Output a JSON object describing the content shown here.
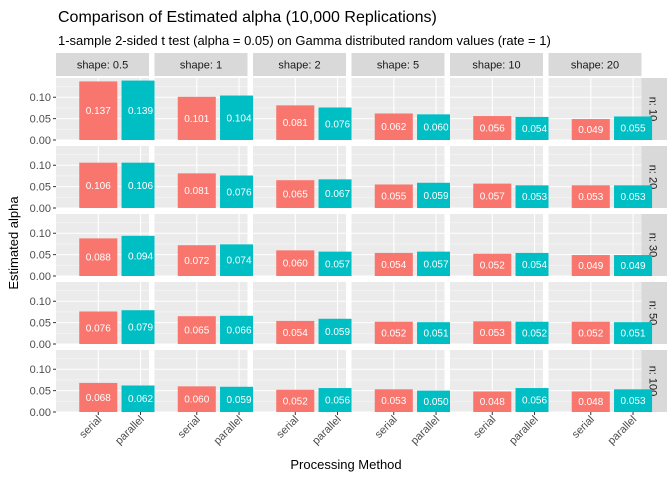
{
  "chart_data": {
    "type": "bar",
    "title": "Comparison of Estimated alpha (10,000 Replications)",
    "subtitle": "1-sample 2-sided t test (alpha = 0.05) on Gamma distributed random values (rate = 1)",
    "xlabel": "Processing Method",
    "ylabel": "Estimated alpha",
    "categories": [
      "serial",
      "parallel"
    ],
    "ylim": [
      0,
      0.145
    ],
    "yticks": [
      "0.00",
      "0.05",
      "0.10"
    ],
    "ytick_values": [
      0,
      0.05,
      0.1
    ],
    "grid": true,
    "facet_cols": [
      "shape: 0.5",
      "shape: 1",
      "shape: 2",
      "shape: 5",
      "shape: 10",
      "shape: 20"
    ],
    "facet_rows": [
      "n: 10",
      "n: 20",
      "n: 30",
      "n: 50",
      "n: 100"
    ],
    "colors": {
      "serial": "#F8766D",
      "parallel": "#00BFC4"
    },
    "values": [
      [
        [
          0.137,
          0.139
        ],
        [
          0.101,
          0.104
        ],
        [
          0.081,
          0.076
        ],
        [
          0.062,
          0.06
        ],
        [
          0.056,
          0.054
        ],
        [
          0.049,
          0.055
        ]
      ],
      [
        [
          0.106,
          0.106
        ],
        [
          0.081,
          0.076
        ],
        [
          0.065,
          0.067
        ],
        [
          0.055,
          0.059
        ],
        [
          0.057,
          0.053
        ],
        [
          0.053,
          0.053
        ]
      ],
      [
        [
          0.088,
          0.094
        ],
        [
          0.072,
          0.074
        ],
        [
          0.06,
          0.057
        ],
        [
          0.054,
          0.057
        ],
        [
          0.052,
          0.054
        ],
        [
          0.049,
          0.049
        ]
      ],
      [
        [
          0.076,
          0.079
        ],
        [
          0.065,
          0.066
        ],
        [
          0.054,
          0.059
        ],
        [
          0.052,
          0.051
        ],
        [
          0.053,
          0.052
        ],
        [
          0.052,
          0.051
        ]
      ],
      [
        [
          0.068,
          0.062
        ],
        [
          0.06,
          0.059
        ],
        [
          0.052,
          0.056
        ],
        [
          0.053,
          0.05
        ],
        [
          0.048,
          0.056
        ],
        [
          0.048,
          0.053
        ]
      ]
    ],
    "labels": [
      [
        [
          "0.137",
          "0.139"
        ],
        [
          "0.101",
          "0.104"
        ],
        [
          "0.081",
          "0.076"
        ],
        [
          "0.062",
          "0.060"
        ],
        [
          "0.056",
          "0.054"
        ],
        [
          "0.049",
          "0.055"
        ]
      ],
      [
        [
          "0.106",
          "0.106"
        ],
        [
          "0.081",
          "0.076"
        ],
        [
          "0.065",
          "0.067"
        ],
        [
          "0.055",
          "0.059"
        ],
        [
          "0.057",
          "0.053"
        ],
        [
          "0.053",
          "0.053"
        ]
      ],
      [
        [
          "0.088",
          "0.094"
        ],
        [
          "0.072",
          "0.074"
        ],
        [
          "0.060",
          "0.057"
        ],
        [
          "0.054",
          "0.057"
        ],
        [
          "0.052",
          "0.054"
        ],
        [
          "0.049",
          "0.049"
        ]
      ],
      [
        [
          "0.076",
          "0.079"
        ],
        [
          "0.065",
          "0.066"
        ],
        [
          "0.054",
          "0.059"
        ],
        [
          "0.052",
          "0.051"
        ],
        [
          "0.053",
          "0.052"
        ],
        [
          "0.052",
          "0.051"
        ]
      ],
      [
        [
          "0.068",
          "0.062"
        ],
        [
          "0.060",
          "0.059"
        ],
        [
          "0.052",
          "0.056"
        ],
        [
          "0.053",
          "0.050"
        ],
        [
          "0.048",
          "0.056"
        ],
        [
          "0.048",
          "0.053"
        ]
      ]
    ]
  }
}
